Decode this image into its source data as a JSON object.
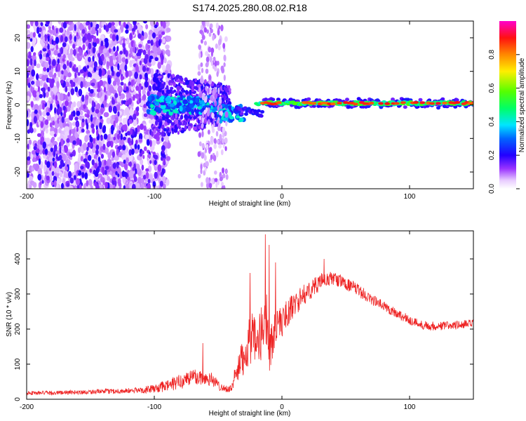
{
  "figure": {
    "title": "S174.2025.280.08.02.R18"
  },
  "chart_data": [
    {
      "type": "heatmap",
      "title": "S174.2025.280.08.02.R18",
      "xlabel": "Height of straight line (km)",
      "ylabel": "Frequency (Hz)",
      "xlim": [
        -200,
        150
      ],
      "ylim": [
        -25,
        25
      ],
      "xticks": [
        -200,
        -100,
        0,
        100
      ],
      "xtick_labels": [
        "-200",
        "-100",
        "0",
        "100"
      ],
      "yticks": [
        -20,
        -10,
        0,
        10,
        20
      ],
      "ytick_labels": [
        "-20",
        "-10",
        "0",
        "10",
        "20"
      ],
      "colorbar": {
        "label": "Normalized spectral amplitude",
        "range": [
          0,
          1
        ],
        "ticks": [
          0.0,
          0.2,
          0.4,
          0.6,
          0.8
        ],
        "tick_labels": [
          "0.0",
          "0.2",
          "0.4",
          "0.6",
          "0.8"
        ],
        "colormap": [
          "#ffffff",
          "#cc99ff",
          "#6600ff",
          "#0000ff",
          "#00ffff",
          "#00ff00",
          "#ffff00",
          "#ff8800",
          "#ff0000",
          "#ff00cc"
        ]
      },
      "description_of_structure": {
        "noise_region_km": [
          -200,
          -100
        ],
        "transition_region_km": [
          -100,
          -40
        ],
        "carrier_line_start_km": -15,
        "carrier_center_freq_hz": 0.5
      }
    },
    {
      "type": "line",
      "xlabel": "Height of straight line (km)",
      "ylabel": "SNR (10 * v/v)",
      "xlim": [
        -200,
        150
      ],
      "ylim": [
        0,
        480
      ],
      "xticks": [
        -200,
        -100,
        0,
        100
      ],
      "xtick_labels": [
        "-200",
        "-100",
        "0",
        "100"
      ],
      "yticks": [
        0,
        100,
        200,
        300,
        400
      ],
      "ytick_labels": [
        "0",
        "100",
        "200",
        "300",
        "400"
      ],
      "series": [
        {
          "name": "SNR",
          "color": "#ee2222",
          "x": [
            -200,
            -180,
            -160,
            -140,
            -120,
            -110,
            -100,
            -90,
            -80,
            -70,
            -60,
            -55,
            -50,
            -45,
            -40,
            -35,
            -30,
            -25,
            -20,
            -15,
            -12,
            -10,
            -5,
            0,
            5,
            10,
            15,
            20,
            25,
            30,
            35,
            40,
            50,
            60,
            70,
            80,
            90,
            100,
            110,
            120,
            130,
            140,
            150
          ],
          "y": [
            18,
            18,
            20,
            22,
            24,
            26,
            30,
            38,
            50,
            65,
            60,
            58,
            40,
            30,
            30,
            80,
            120,
            180,
            150,
            200,
            240,
            130,
            210,
            220,
            250,
            270,
            290,
            305,
            320,
            335,
            340,
            345,
            330,
            310,
            285,
            265,
            245,
            225,
            212,
            208,
            210,
            212,
            215
          ],
          "noise": [
            6,
            6,
            6,
            7,
            8,
            9,
            12,
            18,
            22,
            25,
            22,
            20,
            15,
            10,
            10,
            40,
            60,
            80,
            70,
            80,
            90,
            60,
            50,
            45,
            40,
            35,
            32,
            28,
            26,
            24,
            22,
            20,
            18,
            18,
            16,
            15,
            14,
            14,
            13,
            13,
            13,
            13,
            13
          ],
          "spikes": [
            [
              -13,
              470
            ],
            [
              -10,
              440
            ],
            [
              -25,
              360
            ],
            [
              -5,
              390
            ],
            [
              33,
              400
            ],
            [
              -62,
              160
            ]
          ]
        }
      ]
    }
  ]
}
